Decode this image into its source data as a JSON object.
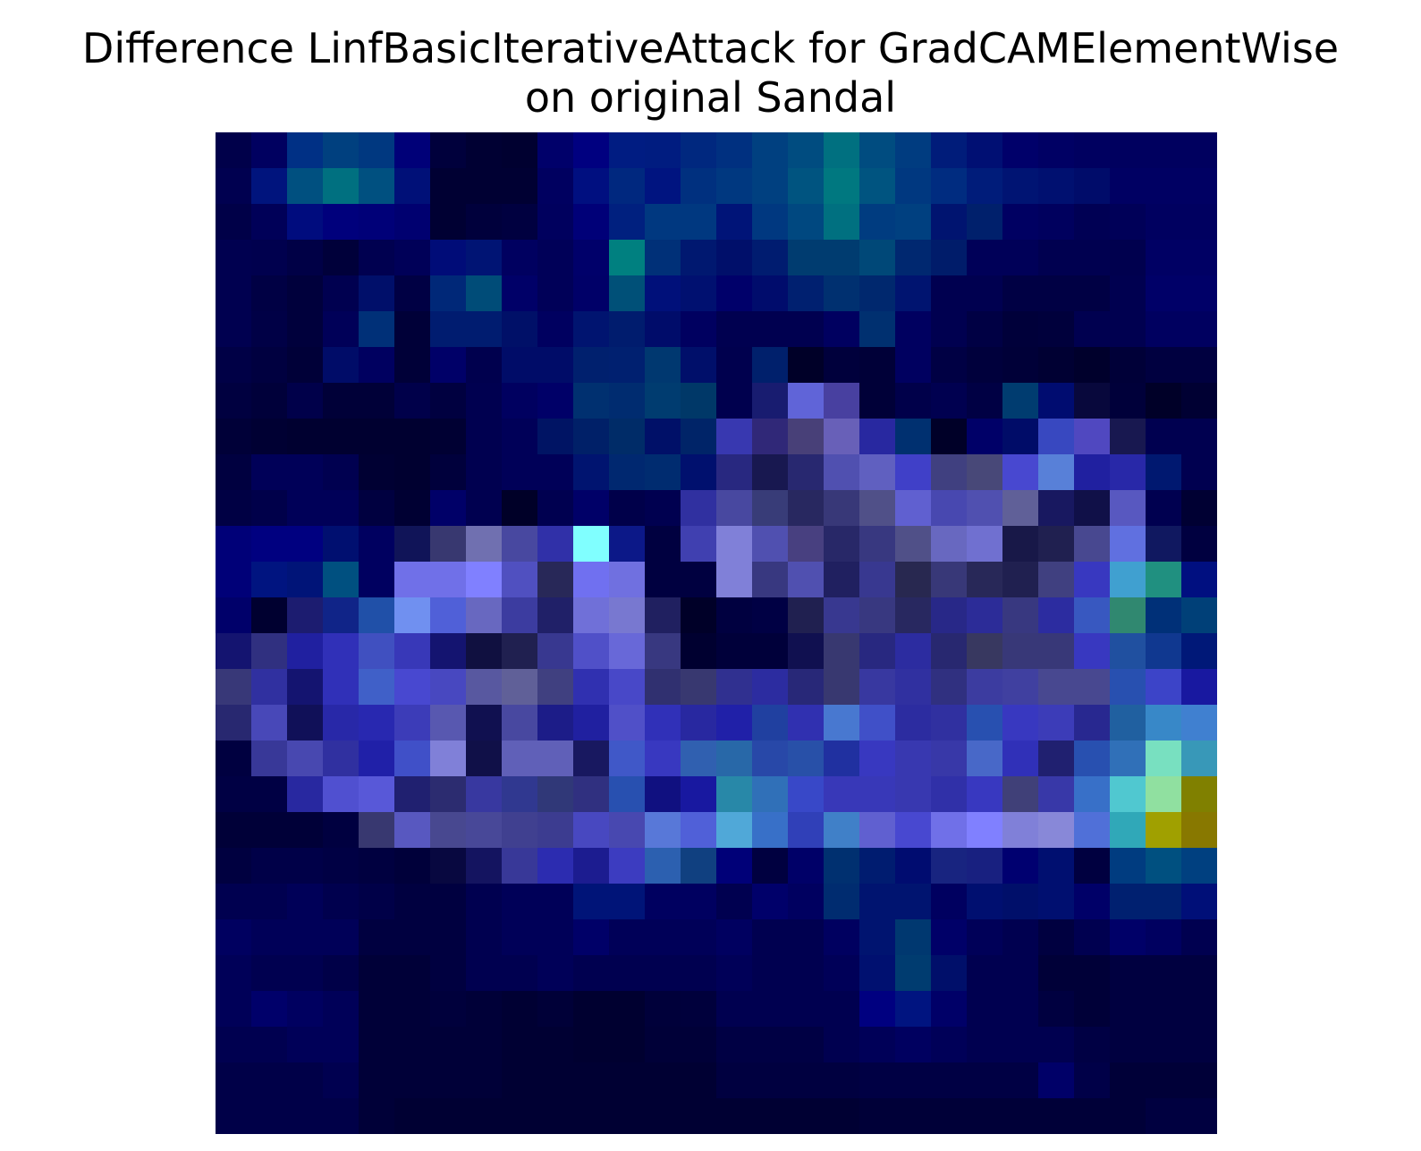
{
  "chart_data": {
    "type": "heatmap",
    "title_lines": [
      "Difference LinfBasicIterativeAttack for GradCAMElementWise",
      "on original Sandal"
    ],
    "xlabel": "",
    "ylabel": "",
    "axes_visible": false,
    "grid": false,
    "rows": 28,
    "cols": 28,
    "cells": [
      [
        "#00004a",
        "#000060",
        "#003085",
        "#00407f",
        "#003880",
        "#000078",
        "#00003c",
        "#000033",
        "#000030",
        "#00006a",
        "#000080",
        "#001c82",
        "#001c80",
        "#00287f",
        "#003080",
        "#004080",
        "#004c80",
        "#007080",
        "#004c80",
        "#003c80",
        "#001c7a",
        "#000f73",
        "#00006a",
        "#000064",
        "#000060",
        "#00005f",
        "#00005f",
        "#00005f"
      ],
      [
        "#000050",
        "#00147d",
        "#005080",
        "#007080",
        "#005080",
        "#001078",
        "#000033",
        "#000033",
        "#000033",
        "#000060",
        "#000f80",
        "#00287f",
        "#001480",
        "#00307f",
        "#003880",
        "#004080",
        "#005480",
        "#007880",
        "#005480",
        "#003880",
        "#002c80",
        "#001c7a",
        "#001473",
        "#001070",
        "#000c6a",
        "#000063",
        "#000063",
        "#000063"
      ],
      [
        "#000048",
        "#000058",
        "#000c7e",
        "#00007c",
        "#000078",
        "#000070",
        "#000033",
        "#00003c",
        "#000040",
        "#00005e",
        "#000078",
        "#00207f",
        "#003880",
        "#003880",
        "#001478",
        "#003880",
        "#004880",
        "#007080",
        "#003c80",
        "#004080",
        "#001470",
        "#00206c",
        "#000062",
        "#00005e",
        "#000054",
        "#000058",
        "#000060",
        "#000060"
      ],
      [
        "#000050",
        "#00004e",
        "#000046",
        "#00003a",
        "#000050",
        "#000058",
        "#000c78",
        "#001474",
        "#000060",
        "#000058",
        "#00006a",
        "#008080",
        "#003078",
        "#001870",
        "#000f6a",
        "#001c70",
        "#003c70",
        "#003c70",
        "#004878",
        "#002870",
        "#001c6a",
        "#000058",
        "#000058",
        "#000050",
        "#000050",
        "#00004e",
        "#000064",
        "#000064"
      ],
      [
        "#000050",
        "#000044",
        "#00003c",
        "#000050",
        "#000f6a",
        "#000044",
        "#002878",
        "#004c78",
        "#000068",
        "#000058",
        "#000068",
        "#005078",
        "#00107a",
        "#001070",
        "#00006a",
        "#000c6c",
        "#002070",
        "#003070",
        "#00286e",
        "#001470",
        "#000050",
        "#000050",
        "#000044",
        "#000044",
        "#000044",
        "#000050",
        "#000068",
        "#000068"
      ],
      [
        "#000050",
        "#000046",
        "#00003c",
        "#000058",
        "#003078",
        "#000038",
        "#001c70",
        "#001c70",
        "#001068",
        "#000060",
        "#001470",
        "#001c6e",
        "#000c6a",
        "#000060",
        "#000050",
        "#000050",
        "#000050",
        "#000060",
        "#003070",
        "#000060",
        "#000050",
        "#000044",
        "#00003a",
        "#00003c",
        "#000050",
        "#000050",
        "#000060",
        "#000060"
      ],
      [
        "#000046",
        "#000040",
        "#000038",
        "#000c68",
        "#000060",
        "#000038",
        "#000068",
        "#00004e",
        "#000c68",
        "#000c68",
        "#00206e",
        "#002070",
        "#003870",
        "#000f6a",
        "#00004e",
        "#00206c",
        "#000028",
        "#00003c",
        "#000038",
        "#000060",
        "#000044",
        "#00003c",
        "#000038",
        "#000033",
        "#00002c",
        "#000038",
        "#000040",
        "#000040"
      ],
      [
        "#000040",
        "#00003a",
        "#00004a",
        "#000038",
        "#000038",
        "#00004a",
        "#000040",
        "#000050",
        "#000060",
        "#000068",
        "#003070",
        "#002c70",
        "#003c70",
        "#003868",
        "#00004e",
        "#181c70",
        "#6064d8",
        "#4840a0",
        "#000038",
        "#00004a",
        "#000050",
        "#000044",
        "#003c70",
        "#000c70",
        "#08083c",
        "#00003a",
        "#000028",
        "#000033"
      ],
      [
        "#000038",
        "#000033",
        "#000030",
        "#000030",
        "#000030",
        "#000030",
        "#000033",
        "#000050",
        "#000058",
        "#001464",
        "#002068",
        "#002c68",
        "#001068",
        "#002468",
        "#3838b0",
        "#302878",
        "#484078",
        "#6860b8",
        "#2828a0",
        "#003070",
        "#000028",
        "#000068",
        "#000c68",
        "#3848c0",
        "#5048c0",
        "#181850",
        "#000050",
        "#000050"
      ],
      [
        "#000040",
        "#000058",
        "#000058",
        "#000050",
        "#000033",
        "#000030",
        "#00003c",
        "#000050",
        "#000058",
        "#000058",
        "#001470",
        "#002870",
        "#002c70",
        "#00106e",
        "#282880",
        "#181850",
        "#282870",
        "#5050b0",
        "#6060c0",
        "#4040c8",
        "#404080",
        "#484878",
        "#4848d0",
        "#5880d8",
        "#2020a0",
        "#2828a8",
        "#001870",
        "#000050"
      ],
      [
        "#000044",
        "#00004a",
        "#000058",
        "#000058",
        "#000040",
        "#000033",
        "#000068",
        "#000050",
        "#000028",
        "#000050",
        "#000068",
        "#00004a",
        "#000050",
        "#3030a0",
        "#4848a0",
        "#383c78",
        "#282860",
        "#383878",
        "#505088",
        "#6060d0",
        "#4848b0",
        "#5050b0",
        "#606098",
        "#181860",
        "#101048",
        "#5858c0",
        "#000050",
        "#000033"
      ],
      [
        "#000078",
        "#000080",
        "#000080",
        "#000f70",
        "#000060",
        "#101458",
        "#383870",
        "#7070b0",
        "#4848a0",
        "#3030a8",
        "#80ffff",
        "#0c1888",
        "#000040",
        "#4040b0",
        "#8080d8",
        "#5050b0",
        "#484080",
        "#282868",
        "#383880",
        "#505088",
        "#6868c0",
        "#7070d0",
        "#181848",
        "#202050",
        "#484890",
        "#6070e0",
        "#101860",
        "#000040"
      ],
      [
        "#000078",
        "#001480",
        "#001478",
        "#005080",
        "#000060",
        "#7070e8",
        "#7070e8",
        "#8080ff",
        "#5050c0",
        "#282858",
        "#7070f0",
        "#7070e0",
        "#000040",
        "#000040",
        "#8080d8",
        "#383880",
        "#5050b0",
        "#202060",
        "#383890",
        "#282850",
        "#383878",
        "#282858",
        "#202050",
        "#404080",
        "#3838c0",
        "#40a0d0",
        "#209080",
        "#000f80"
      ],
      [
        "#00006a",
        "#000030",
        "#1c1c70",
        "#102488",
        "#2050a8",
        "#7090f0",
        "#5060d8",
        "#6868c0",
        "#3c3ca0",
        "#202068",
        "#7070d8",
        "#7878d0",
        "#202060",
        "#000028",
        "#000040",
        "#000044",
        "#202050",
        "#383890",
        "#383880",
        "#282860",
        "#282888",
        "#2c2c98",
        "#383880",
        "#2c2ca0",
        "#3858c0",
        "#308870",
        "#003078",
        "#004078"
      ],
      [
        "#141470",
        "#303080",
        "#2020a0",
        "#3030b8",
        "#4050c0",
        "#3838b8",
        "#141470",
        "#101040",
        "#202050",
        "#383890",
        "#5050c8",
        "#6868d8",
        "#383880",
        "#000030",
        "#00003a",
        "#00003a",
        "#101050",
        "#383870",
        "#282880",
        "#2c2ca0",
        "#282870",
        "#383860",
        "#383878",
        "#383878",
        "#3838c0",
        "#2050a0",
        "#103890",
        "#001878"
      ],
      [
        "#383878",
        "#3030a0",
        "#141470",
        "#3030b8",
        "#4060c8",
        "#4848d0",
        "#4848c0",
        "#5858a0",
        "#606098",
        "#404080",
        "#3030b0",
        "#4848c8",
        "#303070",
        "#383870",
        "#303090",
        "#2c2ca0",
        "#282878",
        "#383870",
        "#3838a0",
        "#3030a0",
        "#303080",
        "#3c3ca0",
        "#4040a0",
        "#484890",
        "#484890",
        "#2850b0",
        "#3c44c8",
        "#1818a0"
      ],
      [
        "#282870",
        "#4848b8",
        "#101058",
        "#2828a8",
        "#2828b0",
        "#3c3cb8",
        "#5858b0",
        "#101050",
        "#4848a0",
        "#1c1c88",
        "#2020a0",
        "#5050c8",
        "#3030b8",
        "#2828a0",
        "#2020a8",
        "#2040a0",
        "#3030b0",
        "#4878d0",
        "#4050c8",
        "#2c2ca0",
        "#3030a0",
        "#2850b0",
        "#3838c0",
        "#3c3cb8",
        "#282890",
        "#2060a0",
        "#3888c8",
        "#4080d0"
      ],
      [
        "#000040",
        "#383898",
        "#4848b0",
        "#3030a0",
        "#2020a8",
        "#4050c8",
        "#8080d8",
        "#101048",
        "#6060b8",
        "#6060b8",
        "#181860",
        "#4058c8",
        "#3838c0",
        "#3060b0",
        "#2868a8",
        "#2848a8",
        "#2850a8",
        "#2030a0",
        "#3838c0",
        "#3838b0",
        "#3838a8",
        "#4868c8",
        "#3030b8",
        "#202070",
        "#2850b0",
        "#3070b8",
        "#78e0c0",
        "#3898b8"
      ],
      [
        "#000044",
        "#000044",
        "#2828a0",
        "#5050d0",
        "#5858d8",
        "#202070",
        "#2c2c70",
        "#3838a0",
        "#303890",
        "#303878",
        "#303080",
        "#2850b0",
        "#101080",
        "#1818a0",
        "#2888a8",
        "#3070b8",
        "#3848c8",
        "#3838b8",
        "#3838b8",
        "#3838b0",
        "#3030a8",
        "#3838c0",
        "#404078",
        "#3838a8",
        "#3870c8",
        "#50c8d0",
        "#90e0a0",
        "#808000"
      ],
      [
        "#000038",
        "#000038",
        "#000038",
        "#000040",
        "#383870",
        "#5858c0",
        "#484890",
        "#484898",
        "#404090",
        "#3c3c90",
        "#4848c0",
        "#4848b0",
        "#5878d8",
        "#5060d8",
        "#50a8d8",
        "#3870c8",
        "#3040b8",
        "#4080c8",
        "#6060d0",
        "#4848d0",
        "#7070e8",
        "#8080ff",
        "#8080d8",
        "#8888d8",
        "#5070d8",
        "#30a8b8",
        "#a0a000",
        "#887800"
      ],
      [
        "#000040",
        "#000048",
        "#000048",
        "#000044",
        "#000040",
        "#00003a",
        "#080840",
        "#141460",
        "#383898",
        "#2c2cb0",
        "#1c1c90",
        "#3c3cc0",
        "#2c60b0",
        "#104080",
        "#000078",
        "#000040",
        "#000068",
        "#003070",
        "#001c70",
        "#000c70",
        "#182480",
        "#182080",
        "#000070",
        "#000f70",
        "#000040",
        "#003c80",
        "#005080",
        "#004080"
      ],
      [
        "#000050",
        "#000050",
        "#000058",
        "#00004e",
        "#000048",
        "#000040",
        "#000040",
        "#000050",
        "#000058",
        "#000058",
        "#001478",
        "#001478",
        "#000060",
        "#000060",
        "#000050",
        "#00006a",
        "#000060",
        "#002c70",
        "#001470",
        "#001470",
        "#000060",
        "#000f70",
        "#000f6a",
        "#000f70",
        "#000068",
        "#002070",
        "#002070",
        "#000f78"
      ],
      [
        "#000060",
        "#000058",
        "#000058",
        "#000058",
        "#000040",
        "#000040",
        "#000040",
        "#000050",
        "#000058",
        "#000058",
        "#000068",
        "#000058",
        "#000058",
        "#000058",
        "#000060",
        "#000050",
        "#000050",
        "#000060",
        "#001470",
        "#003870",
        "#000068",
        "#000058",
        "#000050",
        "#000040",
        "#000050",
        "#000068",
        "#000060",
        "#000050"
      ],
      [
        "#000058",
        "#000050",
        "#000050",
        "#000048",
        "#000038",
        "#000038",
        "#000040",
        "#000050",
        "#000050",
        "#000058",
        "#000050",
        "#000050",
        "#000050",
        "#000050",
        "#000058",
        "#000050",
        "#000050",
        "#000058",
        "#001070",
        "#003c70",
        "#000f6a",
        "#000050",
        "#000050",
        "#000038",
        "#000038",
        "#000040",
        "#000040",
        "#000040"
      ],
      [
        "#000058",
        "#00006a",
        "#000060",
        "#000058",
        "#000038",
        "#000038",
        "#00003c",
        "#000038",
        "#000033",
        "#000038",
        "#000030",
        "#000030",
        "#00003a",
        "#00003c",
        "#000050",
        "#000050",
        "#000050",
        "#000050",
        "#000080",
        "#001480",
        "#000068",
        "#000050",
        "#000050",
        "#000040",
        "#000038",
        "#000040",
        "#000040",
        "#000040"
      ],
      [
        "#000050",
        "#000050",
        "#000058",
        "#000058",
        "#000038",
        "#000038",
        "#000038",
        "#000038",
        "#000033",
        "#000033",
        "#000030",
        "#000030",
        "#000038",
        "#000038",
        "#000044",
        "#000044",
        "#000044",
        "#000050",
        "#000058",
        "#000060",
        "#000058",
        "#000050",
        "#000050",
        "#000050",
        "#000044",
        "#000040",
        "#000040",
        "#000040"
      ],
      [
        "#000048",
        "#000048",
        "#000048",
        "#000050",
        "#000038",
        "#000038",
        "#000038",
        "#000038",
        "#000033",
        "#000033",
        "#000033",
        "#000033",
        "#000033",
        "#000033",
        "#000040",
        "#000040",
        "#000040",
        "#000040",
        "#000044",
        "#000044",
        "#000044",
        "#000044",
        "#000044",
        "#000068",
        "#000048",
        "#000038",
        "#000038",
        "#000038"
      ],
      [
        "#000048",
        "#000048",
        "#000048",
        "#000048",
        "#000038",
        "#000033",
        "#000033",
        "#000033",
        "#000033",
        "#000033",
        "#000033",
        "#000033",
        "#000033",
        "#000033",
        "#000033",
        "#000033",
        "#000033",
        "#000033",
        "#000038",
        "#000038",
        "#000038",
        "#000038",
        "#000038",
        "#000038",
        "#000038",
        "#000038",
        "#000040",
        "#000040"
      ]
    ]
  }
}
